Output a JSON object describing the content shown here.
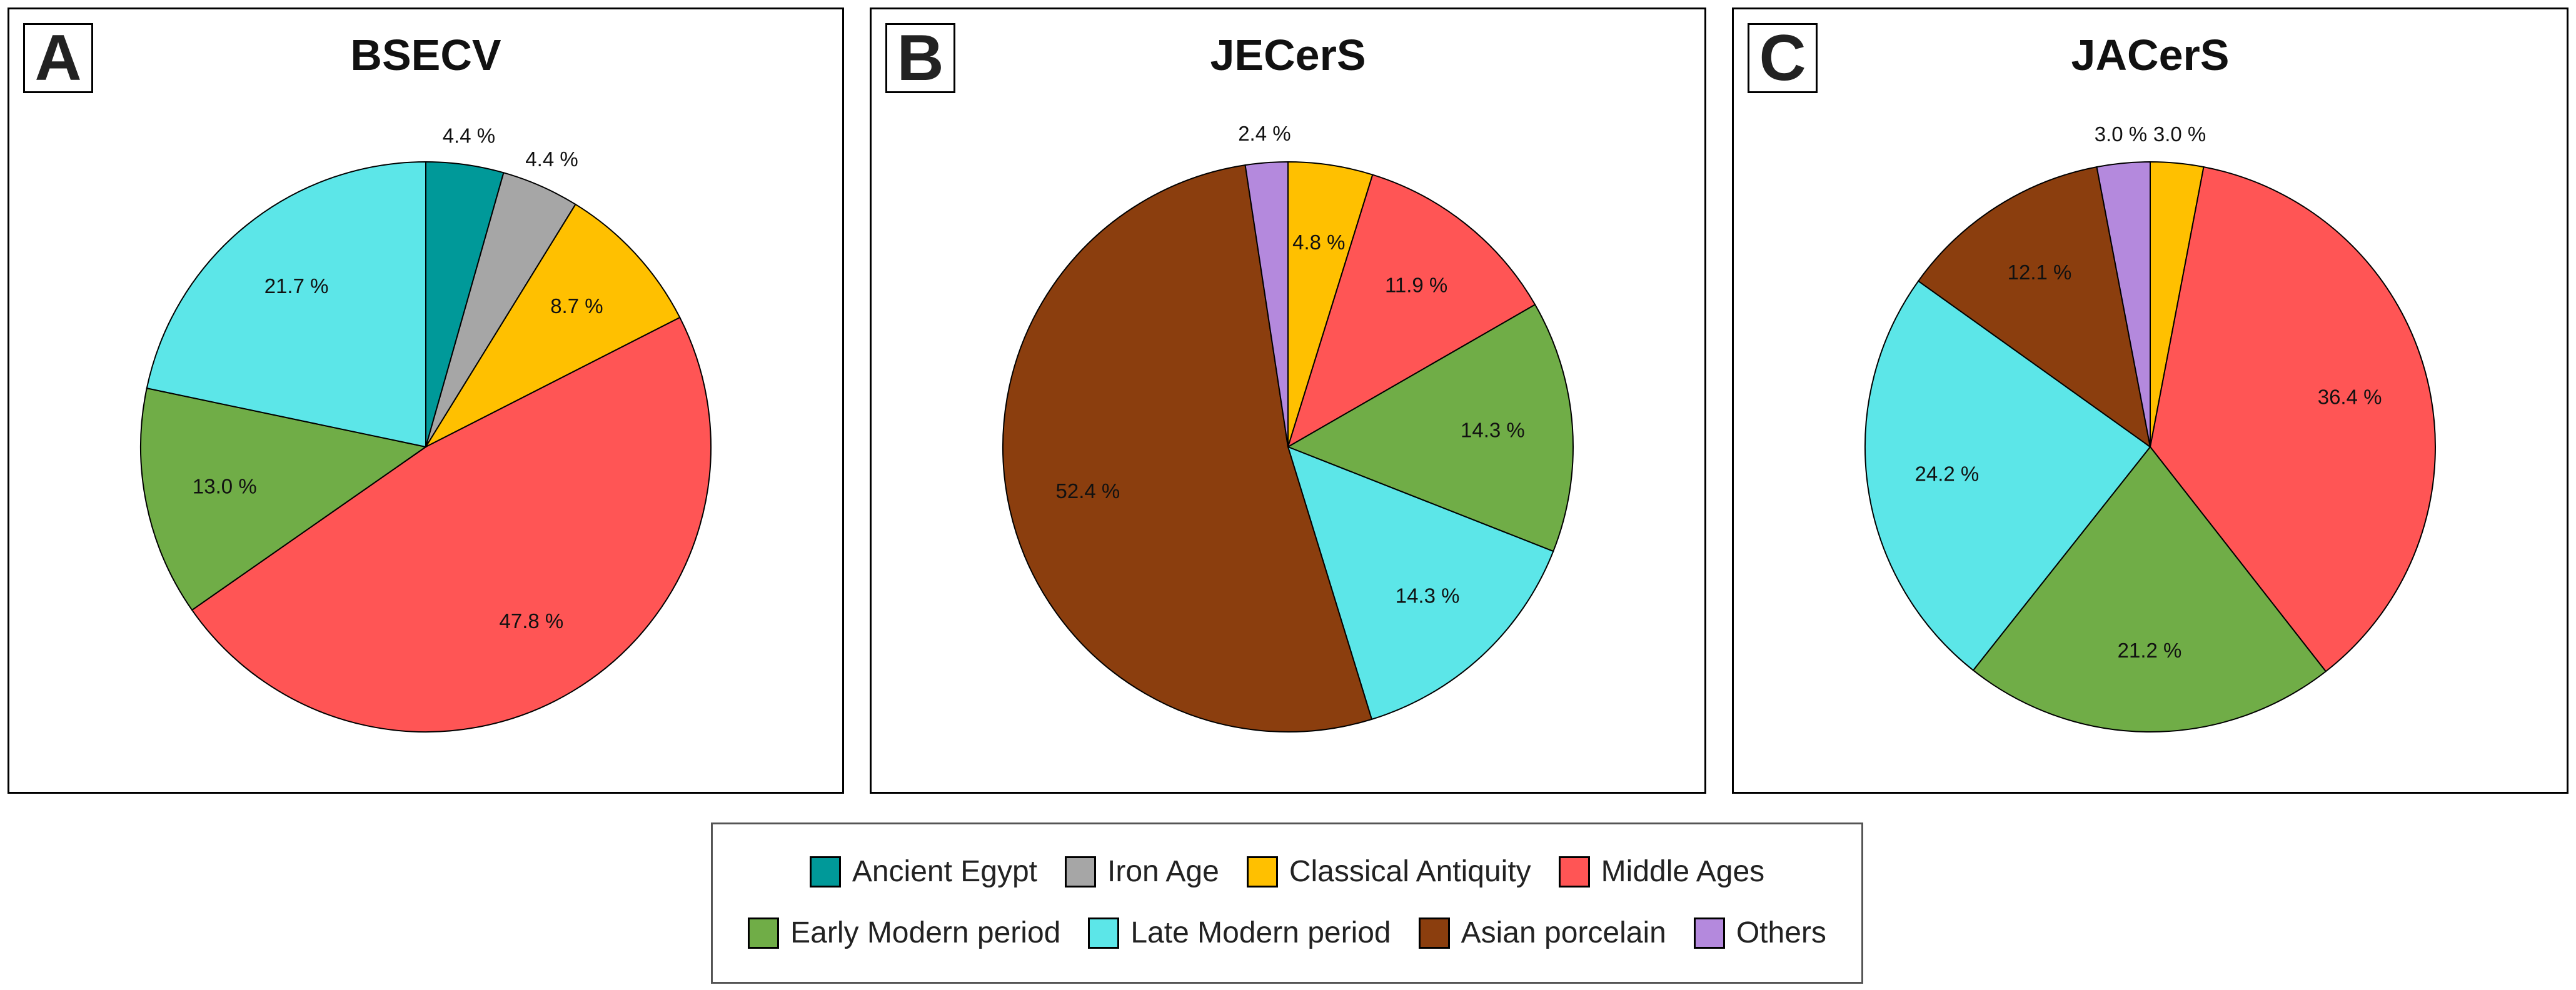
{
  "legend": {
    "items": [
      {
        "label": "Ancient Egypt",
        "color": "#009999"
      },
      {
        "label": "Iron Age",
        "color": "#a6a6a6"
      },
      {
        "label": "Classical Antiquity",
        "color": "#ffc000"
      },
      {
        "label": "Middle Ages",
        "color": "#ff5555"
      },
      {
        "label": "Early Modern period",
        "color": "#70ad47"
      },
      {
        "label": "Late Modern period",
        "color": "#5ce6e8"
      },
      {
        "label": "Asian porcelain",
        "color": "#8b3e0e"
      },
      {
        "label": "Others",
        "color": "#b489dd"
      }
    ]
  },
  "chart_data": [
    {
      "type": "pie",
      "panel_letter": "A",
      "title": "BSECV",
      "start_angle_deg": 90,
      "direction": "clockwise",
      "slices": [
        {
          "label": "Ancient Egypt",
          "value": 4.4,
          "display": "4.4 %",
          "color": "#009999",
          "label_outside": true
        },
        {
          "label": "Iron Age",
          "value": 4.4,
          "display": "4.4 %",
          "color": "#a6a6a6",
          "label_outside": true
        },
        {
          "label": "Classical Antiquity",
          "value": 8.7,
          "display": "8.7 %",
          "color": "#ffc000",
          "label_outside": false
        },
        {
          "label": "Middle Ages",
          "value": 47.8,
          "display": "47.8 %",
          "color": "#ff5555",
          "label_outside": false
        },
        {
          "label": "Early Modern period",
          "value": 13.0,
          "display": "13.0 %",
          "color": "#70ad47",
          "label_outside": false
        },
        {
          "label": "Late Modern period",
          "value": 21.7,
          "display": "21.7 %",
          "color": "#5ce6e8",
          "label_outside": false
        }
      ]
    },
    {
      "type": "pie",
      "panel_letter": "B",
      "title": "JECerS",
      "start_angle_deg": 90,
      "direction": "clockwise",
      "slices": [
        {
          "label": "Classical Antiquity",
          "value": 4.8,
          "display": "4.8 %",
          "color": "#ffc000",
          "label_outside": false
        },
        {
          "label": "Middle Ages",
          "value": 11.9,
          "display": "11.9 %",
          "color": "#ff5555",
          "label_outside": false
        },
        {
          "label": "Early Modern period",
          "value": 14.3,
          "display": "14.3 %",
          "color": "#70ad47",
          "label_outside": false
        },
        {
          "label": "Late Modern period",
          "value": 14.3,
          "display": "14.3 %",
          "color": "#5ce6e8",
          "label_outside": false
        },
        {
          "label": "Asian porcelain",
          "value": 52.4,
          "display": "52.4 %",
          "color": "#8b3e0e",
          "label_outside": false
        },
        {
          "label": "Others",
          "value": 2.4,
          "display": "2.4 %",
          "color": "#b489dd",
          "label_outside": true
        }
      ]
    },
    {
      "type": "pie",
      "panel_letter": "C",
      "title": "JACerS",
      "start_angle_deg": 90,
      "direction": "clockwise",
      "slices": [
        {
          "label": "Classical Antiquity",
          "value": 3.0,
          "display": "3.0 %",
          "color": "#ffc000",
          "label_outside": true
        },
        {
          "label": "Middle Ages",
          "value": 36.4,
          "display": "36.4 %",
          "color": "#ff5555",
          "label_outside": false
        },
        {
          "label": "Early Modern period",
          "value": 21.2,
          "display": "21.2 %",
          "color": "#70ad47",
          "label_outside": false
        },
        {
          "label": "Late Modern period",
          "value": 24.2,
          "display": "24.2 %",
          "color": "#5ce6e8",
          "label_outside": false
        },
        {
          "label": "Asian porcelain",
          "value": 12.1,
          "display": "12.1 %",
          "color": "#8b3e0e",
          "label_outside": false
        },
        {
          "label": "Others",
          "value": 3.0,
          "display": "3.0 %",
          "color": "#b489dd",
          "label_outside": true
        }
      ]
    }
  ]
}
